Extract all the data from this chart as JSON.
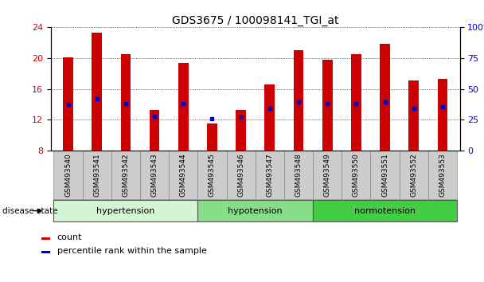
{
  "title": "GDS3675 / 100098141_TGI_at",
  "samples": [
    "GSM493540",
    "GSM493541",
    "GSM493542",
    "GSM493543",
    "GSM493544",
    "GSM493545",
    "GSM493546",
    "GSM493547",
    "GSM493548",
    "GSM493549",
    "GSM493550",
    "GSM493551",
    "GSM493552",
    "GSM493553"
  ],
  "count_values": [
    20.1,
    23.2,
    20.5,
    13.3,
    19.3,
    11.5,
    13.3,
    16.6,
    21.0,
    19.7,
    20.5,
    21.8,
    17.1,
    17.3
  ],
  "percentile_values": [
    14.0,
    14.7,
    14.1,
    12.5,
    14.1,
    12.1,
    12.4,
    13.5,
    14.3,
    14.1,
    14.1,
    14.3,
    13.5,
    13.7
  ],
  "ylim_left": [
    8,
    24
  ],
  "ylim_right": [
    0,
    100
  ],
  "yticks_left": [
    8,
    12,
    16,
    20,
    24
  ],
  "yticks_right": [
    0,
    25,
    50,
    75,
    100
  ],
  "ytick_labels_right": [
    "0",
    "25",
    "50",
    "75",
    "100%"
  ],
  "bar_color": "#cc0000",
  "percentile_color": "#0000cc",
  "bar_bottom": 8,
  "groups": [
    {
      "label": "hypertension",
      "start": 0,
      "end": 5,
      "color": "#d4f5d4"
    },
    {
      "label": "hypotension",
      "start": 5,
      "end": 9,
      "color": "#88dd88"
    },
    {
      "label": "normotension",
      "start": 9,
      "end": 14,
      "color": "#44cc44"
    }
  ],
  "disease_state_label": "disease state",
  "legend_count_label": "count",
  "legend_percentile_label": "percentile rank within the sample",
  "background_color": "#ffffff",
  "tick_label_color_left": "#cc0000",
  "tick_label_color_right": "#0000cc",
  "xticklabel_bg": "#cccccc",
  "bar_width": 0.35
}
